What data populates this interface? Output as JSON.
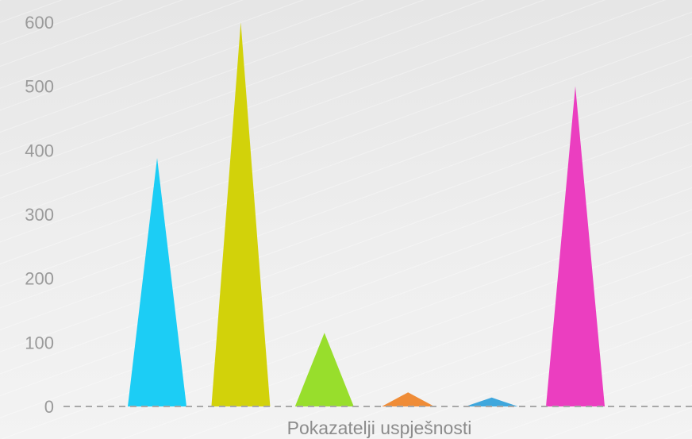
{
  "chart_data": {
    "type": "bar",
    "bar_shape": "triangle",
    "categories": [
      "Pokazatelji uspješnosti"
    ],
    "xlabel": "Pokazatelji uspješnosti",
    "ylabel": "",
    "title": "",
    "ylim": [
      0,
      600
    ],
    "y_ticks": [
      "0",
      "100",
      "200",
      "300",
      "400",
      "500",
      "600"
    ],
    "grid": false,
    "baseline_style": "dashed",
    "series": [
      {
        "values": [
          388
        ],
        "color": "#1ccdf5"
      },
      {
        "values": [
          600
        ],
        "color": "#d2d20a"
      },
      {
        "values": [
          115
        ],
        "color": "#98de2c"
      },
      {
        "values": [
          22
        ],
        "color": "#ef8c37"
      },
      {
        "values": [
          14
        ],
        "color": "#3fa7dd"
      },
      {
        "values": [
          500
        ],
        "color": "#eb3ec0"
      }
    ]
  }
}
